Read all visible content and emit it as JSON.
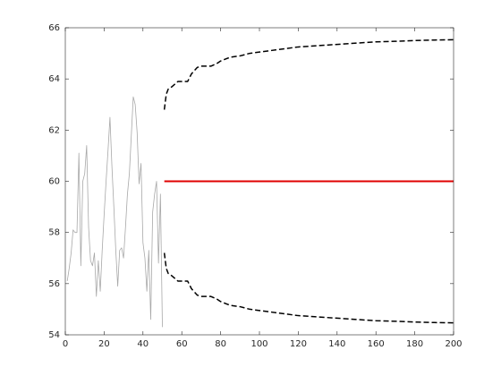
{
  "chart_data": {
    "type": "line",
    "xlim": [
      0,
      200
    ],
    "xticks": [
      0,
      20,
      40,
      60,
      80,
      100,
      120,
      140,
      160,
      180,
      200
    ],
    "ylim": [
      54,
      66
    ],
    "yticks": [
      54,
      56,
      58,
      60,
      62,
      64,
      66
    ],
    "box": true,
    "series": [
      {
        "color": "#a8a8a8",
        "style": "solid",
        "width": 0.8,
        "x": [
          1,
          2,
          3,
          4,
          5,
          6,
          7,
          8,
          9,
          10,
          11,
          12,
          13,
          14,
          15,
          16,
          17,
          18,
          19,
          20,
          21,
          22,
          23,
          24,
          25,
          26,
          27,
          28,
          29,
          30,
          31,
          32,
          33,
          34,
          35,
          36,
          37,
          38,
          39,
          40,
          41,
          42,
          43,
          44,
          45,
          46,
          47,
          48,
          49,
          50
        ],
        "values": [
          56.1,
          56.6,
          57.2,
          58.1,
          58.0,
          58.0,
          61.1,
          56.7,
          60.0,
          60.3,
          61.4,
          58.2,
          56.9,
          56.7,
          57.2,
          55.5,
          56.9,
          55.7,
          57.3,
          58.7,
          60.0,
          61.2,
          62.5,
          60.6,
          59.0,
          57.3,
          55.9,
          57.3,
          57.4,
          57.0,
          58.2,
          59.5,
          60.3,
          61.8,
          63.3,
          63.0,
          61.9,
          59.9,
          60.7,
          57.6,
          57.0,
          55.7,
          57.3,
          54.6,
          58.8,
          59.5,
          60.0,
          56.8,
          59.5,
          54.3
        ]
      },
      {
        "color": "#e00000",
        "style": "solid",
        "width": 2,
        "x": [
          51,
          200
        ],
        "values": [
          60,
          60
        ]
      },
      {
        "color": "#000000",
        "style": "dashed",
        "width": 1.5,
        "x": [
          51,
          52,
          53,
          55,
          58,
          60,
          63,
          65,
          68,
          70,
          75,
          78,
          80,
          85,
          90,
          95,
          100,
          110,
          120,
          130,
          140,
          150,
          160,
          170,
          180,
          190,
          200
        ],
        "values": [
          62.8,
          63.4,
          63.6,
          63.7,
          63.9,
          63.9,
          63.9,
          64.2,
          64.45,
          64.5,
          64.5,
          64.6,
          64.7,
          64.85,
          64.9,
          65.0,
          65.05,
          65.15,
          65.25,
          65.3,
          65.35,
          65.4,
          65.45,
          65.47,
          65.5,
          65.52,
          65.53
        ]
      },
      {
        "color": "#000000",
        "style": "dashed",
        "width": 1.5,
        "x": [
          51,
          52,
          53,
          55,
          58,
          60,
          63,
          65,
          68,
          70,
          75,
          78,
          80,
          85,
          90,
          95,
          100,
          110,
          120,
          130,
          140,
          150,
          160,
          170,
          180,
          190,
          200
        ],
        "values": [
          57.2,
          56.6,
          56.4,
          56.3,
          56.1,
          56.1,
          56.1,
          55.8,
          55.55,
          55.5,
          55.5,
          55.4,
          55.3,
          55.15,
          55.1,
          55.0,
          54.95,
          54.85,
          54.75,
          54.7,
          54.65,
          54.6,
          54.55,
          54.53,
          54.5,
          54.48,
          54.47
        ]
      }
    ]
  }
}
